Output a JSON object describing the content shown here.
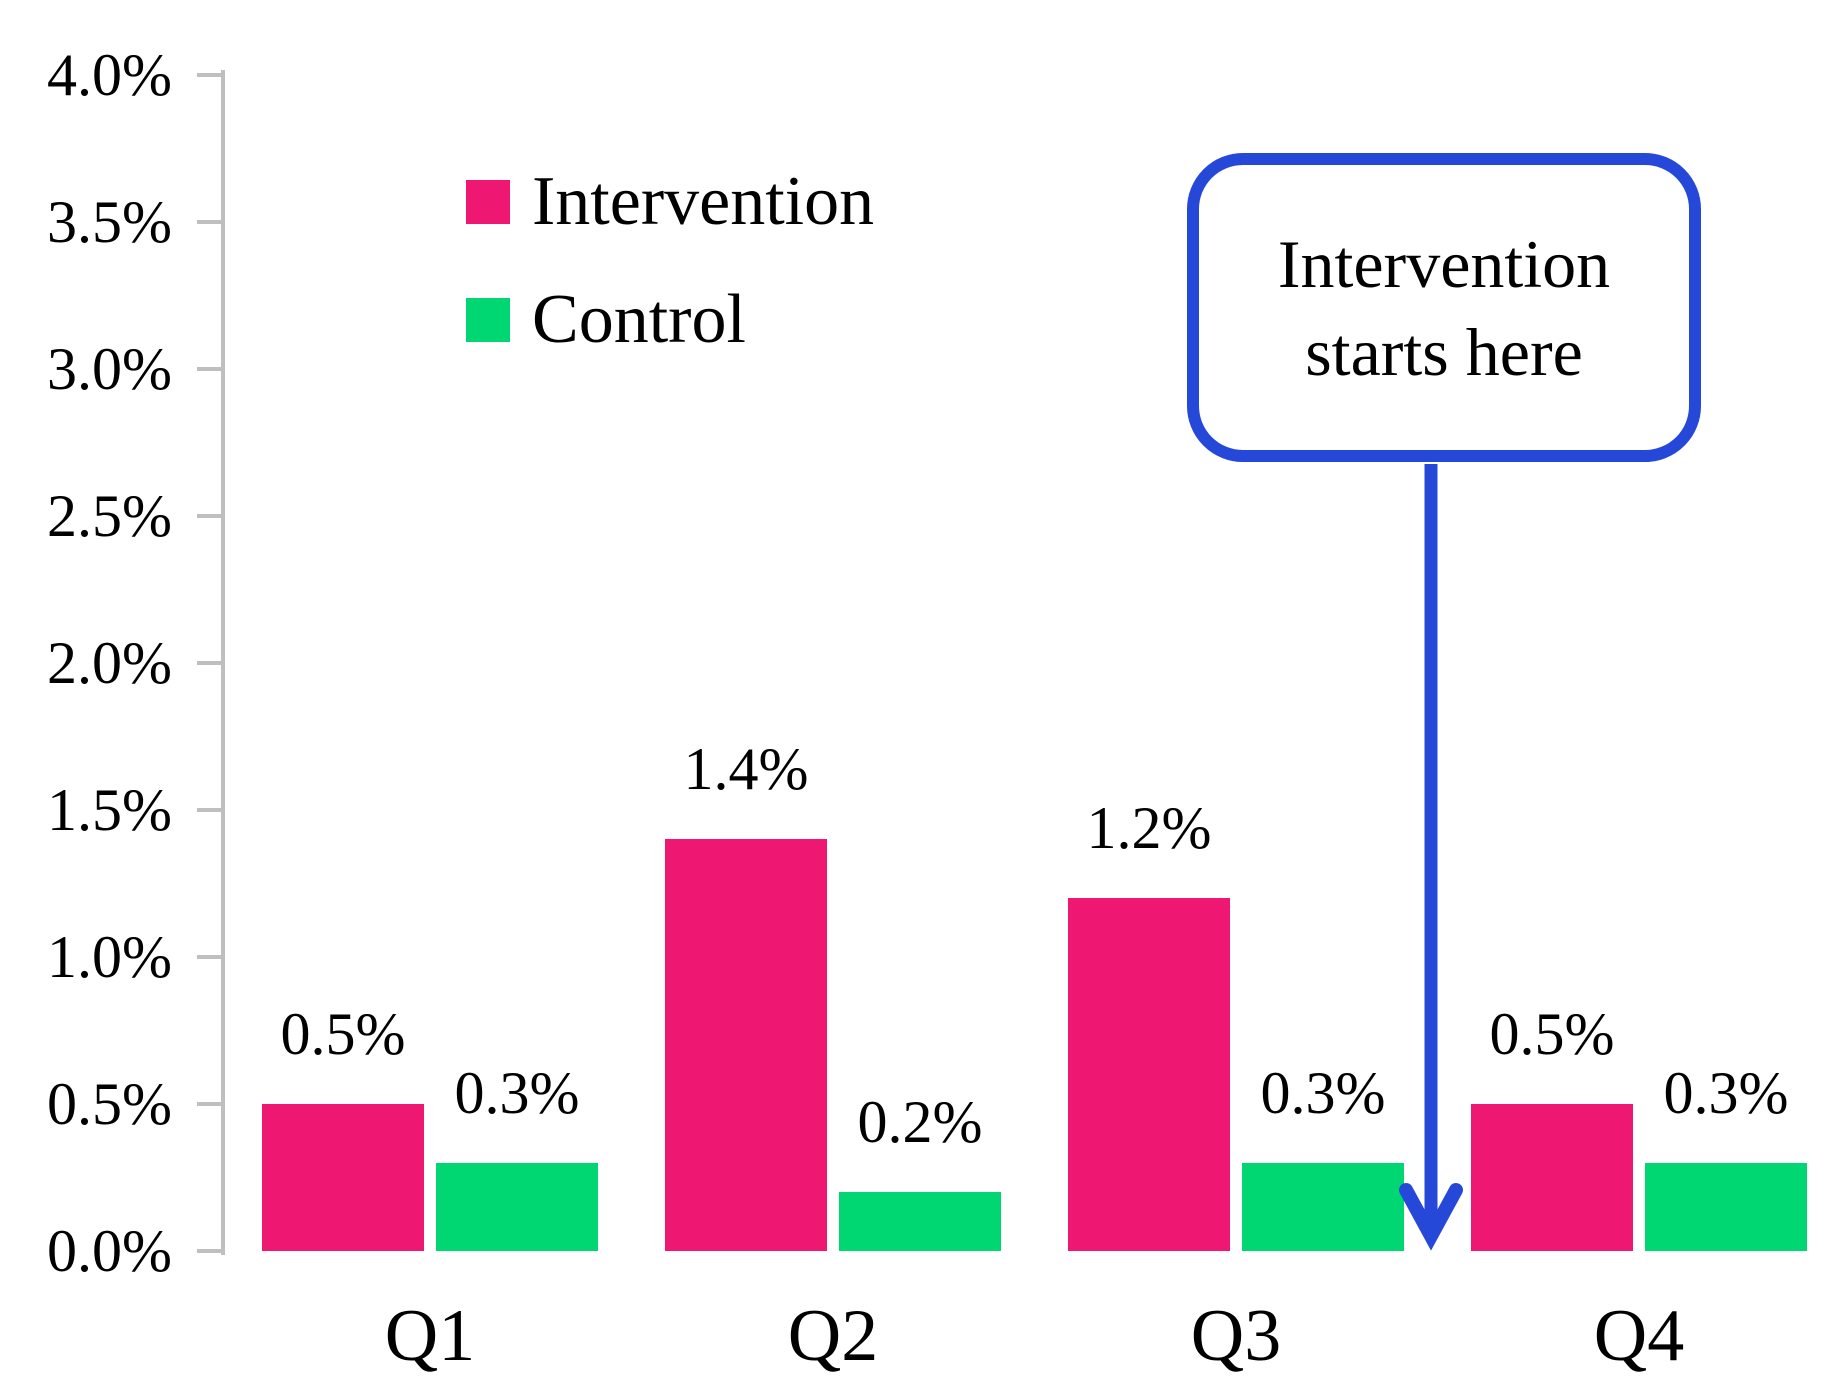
{
  "chart_data": {
    "type": "bar",
    "title": "",
    "categories": [
      "Q1",
      "Q2",
      "Q3",
      "Q4"
    ],
    "series": [
      {
        "name": "Intervention",
        "color": "#EE1771",
        "values": [
          0.5,
          1.4,
          1.2,
          0.5
        ],
        "value_labels": [
          "0.5%",
          "1.4%",
          "1.2%",
          "0.5%"
        ]
      },
      {
        "name": "Control",
        "color": "#00D772",
        "values": [
          0.3,
          0.2,
          0.3,
          0.3
        ],
        "value_labels": [
          "0.3%",
          "0.2%",
          "0.3%",
          "0.3%"
        ]
      }
    ],
    "y_axis": {
      "min": 0,
      "max": 4.0,
      "step": 0.5,
      "unit": "%",
      "tick_labels": [
        "0.0%",
        "0.5%",
        "1.0%",
        "1.5%",
        "2.0%",
        "2.5%",
        "3.0%",
        "3.5%",
        "4.0%"
      ]
    },
    "x_axis": {
      "tick_labels": [
        "Q1",
        "Q2",
        "Q3",
        "Q4"
      ]
    },
    "grid": false,
    "legend": {
      "position": "top-left",
      "entries": [
        "Intervention",
        "Control"
      ]
    },
    "annotation": {
      "lines": [
        "Intervention",
        "starts here"
      ],
      "color": "#2548D8",
      "arrow_target": "x-axis between Q3 and Q4"
    }
  },
  "colors": {
    "background": "#FFFFFF",
    "axis": "#BFBFBF",
    "text": "#000000",
    "intervention": "#EE1771",
    "control": "#00D772",
    "annotation_blue": "#2548D8"
  }
}
